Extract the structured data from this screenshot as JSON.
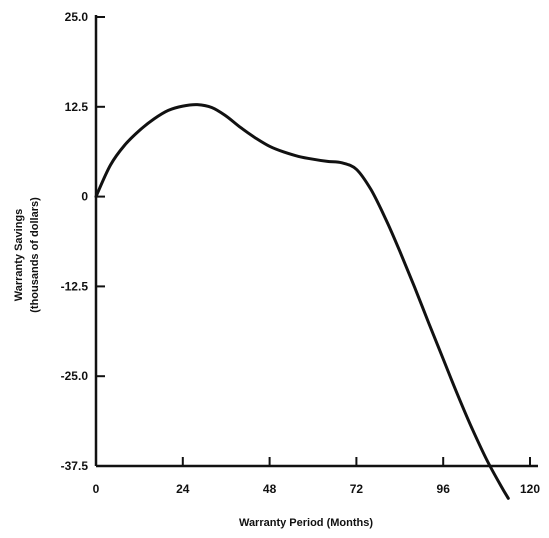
{
  "chart_data": {
    "type": "line",
    "title": "",
    "xlabel": "Warranty Period (Months)",
    "ylabel_line1": "Warranty Savings",
    "ylabel_line2": "(thousands of dollars)",
    "xlim": [
      0,
      120
    ],
    "ylim": [
      -37.5,
      25.0
    ],
    "xticks": [
      0,
      24,
      48,
      72,
      96,
      120
    ],
    "xtick_labels": [
      "0",
      "24",
      "48",
      "72",
      "96",
      "120"
    ],
    "yticks": [
      25.0,
      12.5,
      0,
      -12.5,
      -25.0,
      -37.5
    ],
    "ytick_labels": [
      "25.0",
      "12.5",
      "0",
      "-12.5",
      "-25.0",
      "-37.5"
    ],
    "grid": false,
    "series": [
      {
        "x": [
          0,
          4,
          8,
          12,
          16,
          20,
          24,
          28,
          32,
          36,
          40,
          44,
          48,
          52,
          56,
          60,
          64,
          68,
          72,
          76,
          80,
          84,
          88,
          92,
          96,
          100,
          104,
          108,
          112,
          114
        ],
        "y": [
          0,
          4.4,
          7.2,
          9.2,
          10.8,
          12.0,
          12.6,
          12.8,
          12.4,
          11.2,
          9.6,
          8.2,
          7.0,
          6.2,
          5.6,
          5.2,
          4.9,
          4.7,
          3.8,
          1.0,
          -3.0,
          -7.6,
          -12.5,
          -17.6,
          -22.6,
          -27.6,
          -32.3,
          -36.6,
          -40.3,
          -42.0
        ]
      }
    ],
    "color": "#111111"
  }
}
